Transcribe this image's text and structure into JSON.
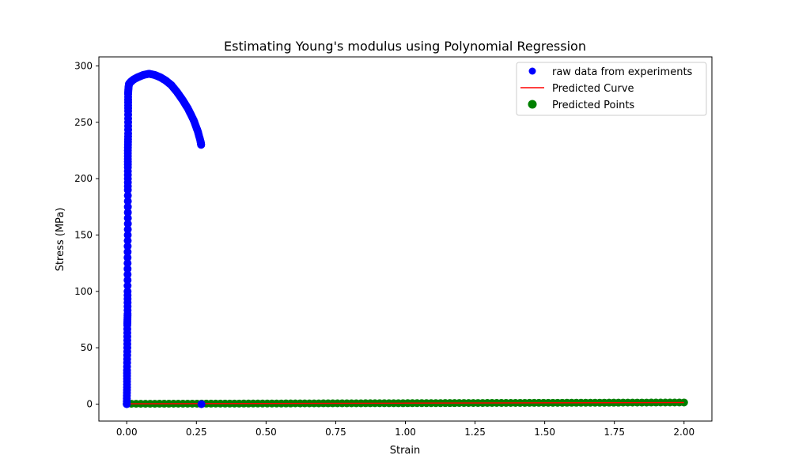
{
  "chart_data": {
    "type": "scatter",
    "title": "Estimating Young's modulus using Polynomial Regression",
    "xlabel": "Strain",
    "ylabel": "Stress (MPa)",
    "xlim": [
      -0.1,
      2.1
    ],
    "ylim": [
      -15,
      308
    ],
    "xticks": [
      0.0,
      0.25,
      0.5,
      0.75,
      1.0,
      1.25,
      1.5,
      1.75,
      2.0
    ],
    "xtick_labels": [
      "0.00",
      "0.25",
      "0.50",
      "0.75",
      "1.00",
      "1.25",
      "1.50",
      "1.75",
      "2.00"
    ],
    "yticks": [
      0,
      50,
      100,
      150,
      200,
      250,
      300
    ],
    "ytick_labels": [
      "0",
      "50",
      "100",
      "150",
      "200",
      "250",
      "300"
    ],
    "grid": false,
    "legend": "top-right",
    "series": [
      {
        "name": "raw data from experiments",
        "kind": "scatter",
        "color": "#0000ff",
        "points": [
          [
            0.0,
            0
          ],
          [
            0.001,
            15
          ],
          [
            0.001,
            30
          ],
          [
            0.002,
            50
          ],
          [
            0.002,
            70
          ],
          [
            0.003,
            80
          ],
          [
            0.003,
            100
          ],
          [
            0.003,
            130
          ],
          [
            0.004,
            160
          ],
          [
            0.004,
            190
          ],
          [
            0.004,
            210
          ],
          [
            0.004,
            225
          ],
          [
            0.005,
            240
          ],
          [
            0.005,
            260
          ],
          [
            0.005,
            275
          ],
          [
            0.006,
            280
          ],
          [
            0.008,
            284
          ],
          [
            0.015,
            286
          ],
          [
            0.025,
            288
          ],
          [
            0.04,
            290
          ],
          [
            0.06,
            292
          ],
          [
            0.08,
            293
          ],
          [
            0.1,
            292
          ],
          [
            0.12,
            290
          ],
          [
            0.14,
            287
          ],
          [
            0.16,
            283
          ],
          [
            0.18,
            277
          ],
          [
            0.2,
            270
          ],
          [
            0.22,
            262
          ],
          [
            0.24,
            252
          ],
          [
            0.255,
            242
          ],
          [
            0.265,
            233
          ],
          [
            0.267,
            230
          ],
          [
            0.268,
            0
          ]
        ]
      },
      {
        "name": "Predicted Curve",
        "kind": "line",
        "color": "#ff0000",
        "points": [
          [
            0.0,
            0.3
          ],
          [
            0.5,
            0.6
          ],
          [
            1.0,
            0.9
          ],
          [
            1.5,
            1.2
          ],
          [
            2.0,
            1.5
          ]
        ]
      },
      {
        "name": "Predicted Points",
        "kind": "scatter",
        "color": "#008000",
        "x_range": [
          0.0,
          2.0
        ],
        "count": 120,
        "y_start": 0.3,
        "y_end": 1.5
      }
    ]
  }
}
